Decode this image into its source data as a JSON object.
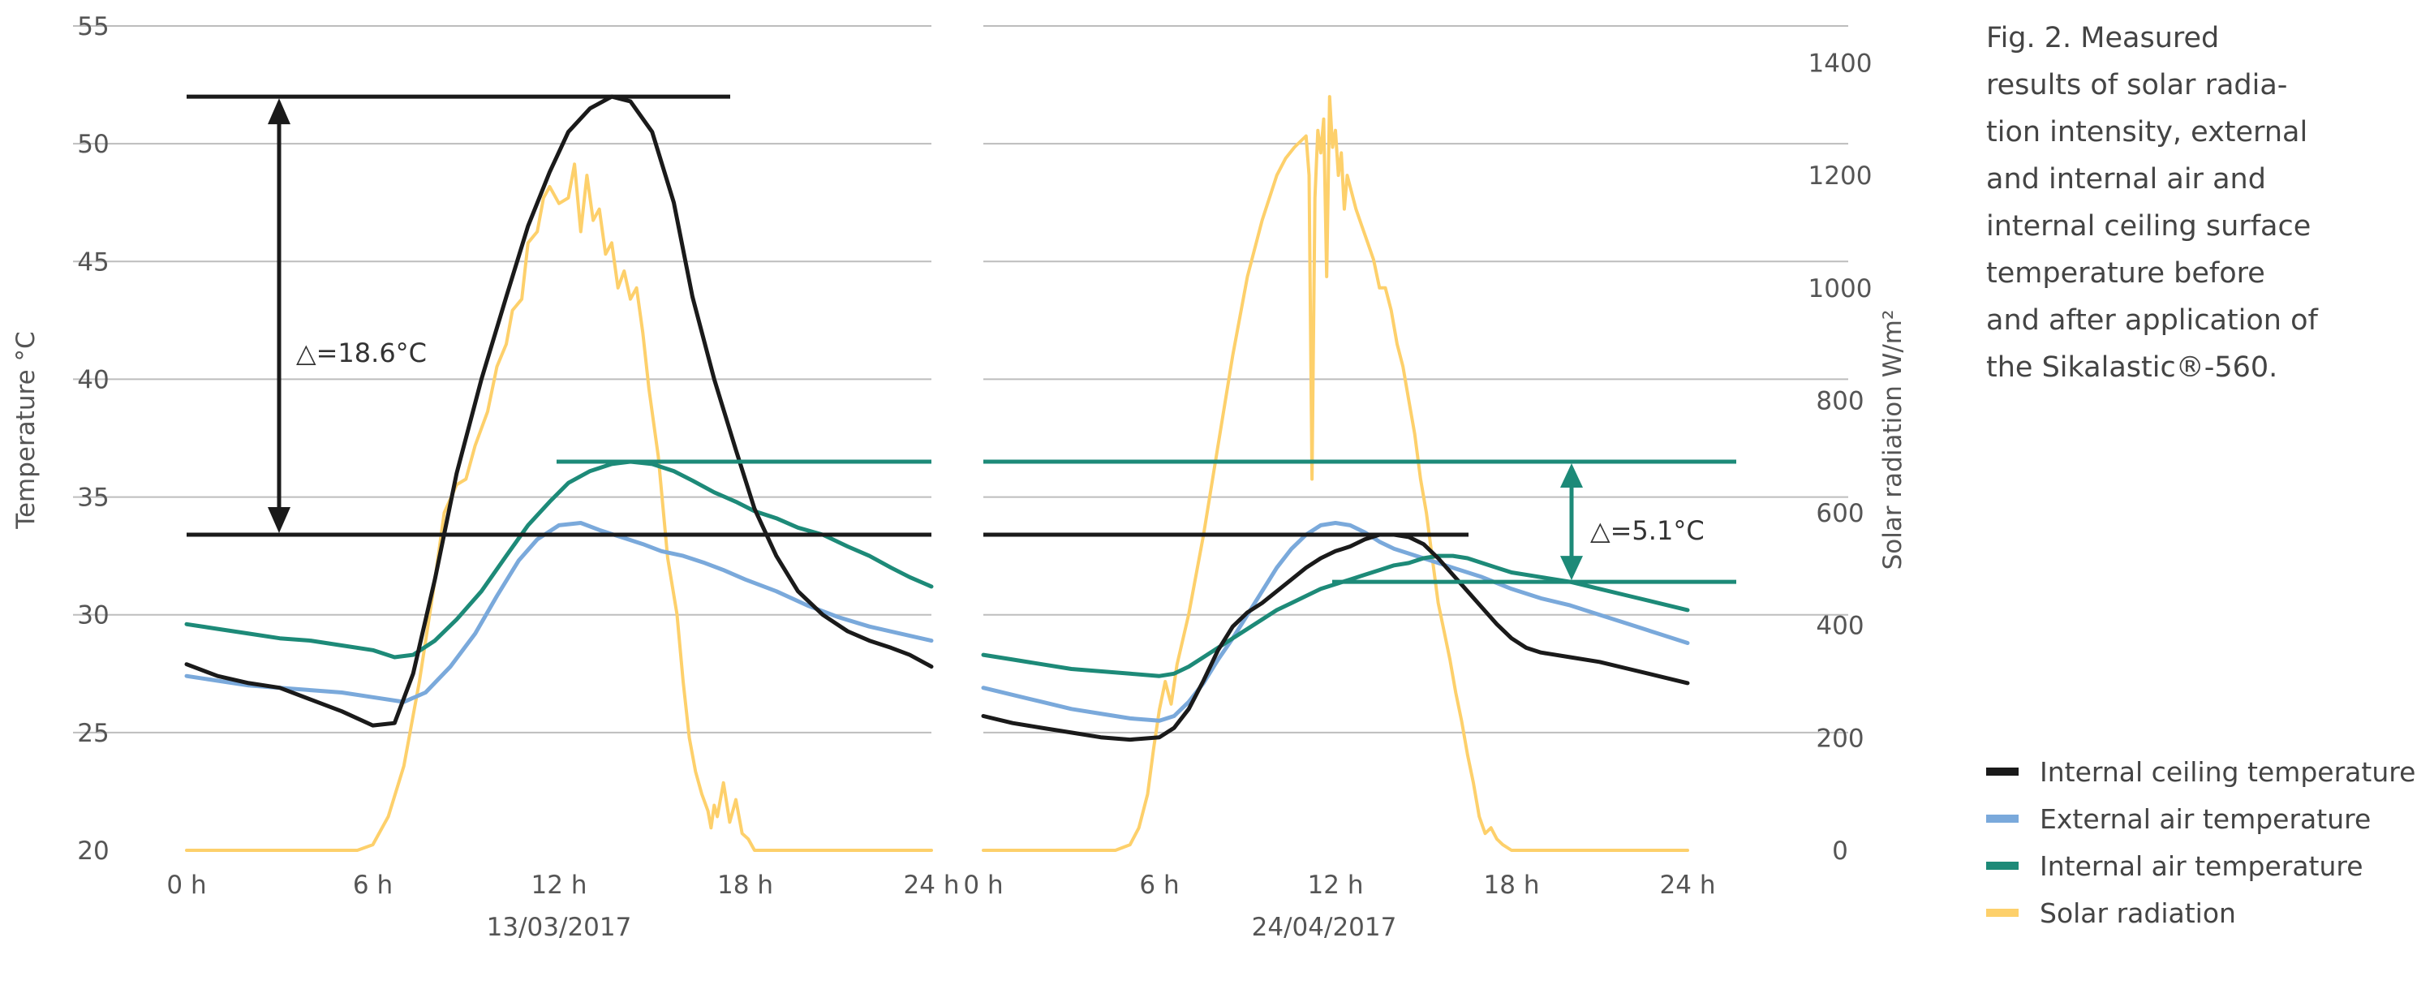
{
  "caption": [
    "Fig. 2. Measured",
    "results of solar radia-",
    "tion intensity, external",
    "and internal air and",
    "internal ceiling surface",
    "temperature before",
    "and after application of",
    "the Sikalastic®-560."
  ],
  "legend": [
    {
      "name": "Internal ceiling temperature",
      "color": "#1a1a1a"
    },
    {
      "name": "External air temperature",
      "color": "#7aa9db"
    },
    {
      "name": "Internal air temperature",
      "color": "#1d8a78"
    },
    {
      "name": "Solar radiation",
      "color": "#fdd06b"
    }
  ],
  "chart_data": {
    "type": "line",
    "ylabel": "Temperature °C",
    "y2label": "Solar radiation W/m²",
    "ylim": [
      20,
      55
    ],
    "y2lim": [
      0,
      1400
    ],
    "yticks": [
      "55",
      "50",
      "45",
      "40",
      "35",
      "30",
      "25",
      "20"
    ],
    "y2ticks": [
      "1400",
      "1200",
      "1000",
      "800",
      "600",
      "400",
      "200",
      "0"
    ],
    "xticks": [
      "0 h",
      "6 h",
      "12 h",
      "18 h",
      "24 h"
    ],
    "grid": true,
    "legend_position": "bottom-right",
    "panels": [
      {
        "date": "13/03/2017",
        "annotation": "△=18.6°C",
        "series": [
          {
            "name": "Internal ceiling temperature",
            "x": [
              0,
              1,
              2,
              3,
              4,
              5,
              6,
              6.7,
              7.3,
              8,
              8.7,
              9.5,
              10.3,
              11,
              11.7,
              12.3,
              13,
              13.7,
              14.3,
              15,
              15.7,
              16.3,
              17,
              17.7,
              18.3,
              19,
              19.7,
              20.5,
              21.3,
              22,
              22.7,
              23.3,
              24
            ],
            "y": [
              27.9,
              27.4,
              27.1,
              26.9,
              26.4,
              25.9,
              25.3,
              25.4,
              27.5,
              31.5,
              36,
              40,
              43.5,
              46.5,
              48.8,
              50.5,
              51.5,
              52,
              51.8,
              50.5,
              47.5,
              43.5,
              40,
              37,
              34.5,
              32.5,
              31,
              30,
              29.3,
              28.9,
              28.6,
              28.3,
              27.8
            ]
          },
          {
            "name": "External air temperature",
            "x": [
              0,
              1,
              2,
              3,
              4,
              5,
              6,
              7,
              7.7,
              8.5,
              9.3,
              10,
              10.7,
              11.3,
              12,
              12.7,
              13.3,
              14,
              14.7,
              15.3,
              16,
              16.7,
              17.3,
              18,
              19,
              20,
              21,
              22,
              23,
              24
            ],
            "y": [
              27.4,
              27.2,
              27.0,
              26.9,
              26.8,
              26.7,
              26.5,
              26.3,
              26.7,
              27.8,
              29.2,
              30.8,
              32.3,
              33.2,
              33.8,
              33.9,
              33.6,
              33.3,
              33.0,
              32.7,
              32.5,
              32.2,
              31.9,
              31.5,
              31.0,
              30.4,
              29.9,
              29.5,
              29.2,
              28.9
            ]
          },
          {
            "name": "Internal air temperature",
            "x": [
              0,
              1,
              2,
              3,
              4,
              5,
              6,
              6.7,
              7.3,
              8,
              8.7,
              9.5,
              10.3,
              11,
              11.7,
              12.3,
              13,
              13.7,
              14.3,
              15,
              15.7,
              16.3,
              17,
              17.7,
              18.3,
              19,
              19.7,
              20.5,
              21.3,
              22,
              22.7,
              23.3,
              24
            ],
            "y": [
              29.6,
              29.4,
              29.2,
              29.0,
              28.9,
              28.7,
              28.5,
              28.2,
              28.3,
              28.9,
              29.8,
              31.0,
              32.5,
              33.8,
              34.8,
              35.6,
              36.1,
              36.4,
              36.5,
              36.4,
              36.1,
              35.7,
              35.2,
              34.8,
              34.4,
              34.1,
              33.7,
              33.4,
              32.9,
              32.5,
              32.0,
              31.6,
              31.2
            ]
          },
          {
            "name": "Solar radiation",
            "x": [
              0,
              5.5,
              6,
              6.5,
              7,
              7.5,
              8,
              8.3,
              8.7,
              9,
              9.3,
              9.7,
              10,
              10.3,
              10.5,
              10.8,
              11,
              11.3,
              11.5,
              11.7,
              12,
              12.3,
              12.5,
              12.7,
              12.9,
              13.1,
              13.3,
              13.5,
              13.7,
              13.9,
              14.1,
              14.3,
              14.5,
              14.7,
              14.9,
              15.2,
              15.5,
              15.8,
              16,
              16.2,
              16.4,
              16.6,
              16.8,
              16.9,
              17.0,
              17.1,
              17.3,
              17.5,
              17.7,
              17.9,
              18.1,
              18.3,
              19,
              24
            ],
            "y": [
              0,
              0,
              10,
              60,
              150,
              300,
              480,
              600,
              650,
              660,
              720,
              780,
              860,
              900,
              960,
              980,
              1080,
              1100,
              1160,
              1180,
              1150,
              1160,
              1220,
              1100,
              1200,
              1120,
              1140,
              1060,
              1080,
              1000,
              1030,
              980,
              1000,
              920,
              820,
              700,
              520,
              420,
              300,
              200,
              140,
              100,
              70,
              40,
              80,
              60,
              120,
              50,
              90,
              30,
              20,
              0,
              0,
              0
            ]
          }
        ],
        "annotation_lines": {
          "max": 52,
          "min": 33.4,
          "internal_air_level": 36.5
        }
      },
      {
        "date": "24/04/2017",
        "annotation": "△=5.1°C",
        "series": [
          {
            "name": "Internal ceiling temperature",
            "x": [
              0,
              1,
              2,
              3,
              4,
              5,
              6,
              6.5,
              7,
              7.5,
              8,
              8.5,
              9,
              9.5,
              10,
              10.5,
              11,
              11.5,
              12,
              12.5,
              13,
              13.5,
              14,
              14.5,
              15,
              15.5,
              16,
              16.5,
              17,
              17.5,
              18,
              18.5,
              19,
              20,
              21,
              22,
              23,
              24
            ],
            "y": [
              25.7,
              25.4,
              25.2,
              25.0,
              24.8,
              24.7,
              24.8,
              25.2,
              26.0,
              27.2,
              28.5,
              29.5,
              30.1,
              30.5,
              31.0,
              31.5,
              32.0,
              32.4,
              32.7,
              32.9,
              33.2,
              33.4,
              33.4,
              33.3,
              33.0,
              32.4,
              31.7,
              31.0,
              30.3,
              29.6,
              29.0,
              28.6,
              28.4,
              28.2,
              28.0,
              27.7,
              27.4,
              27.1
            ]
          },
          {
            "name": "External air temperature",
            "x": [
              0,
              1,
              2,
              3,
              4,
              5,
              6,
              6.5,
              7,
              7.5,
              8,
              8.5,
              9,
              9.5,
              10,
              10.5,
              11,
              11.5,
              12,
              12.5,
              13,
              13.5,
              14,
              15,
              16,
              17,
              18,
              19,
              20,
              21,
              22,
              23,
              24
            ],
            "y": [
              26.9,
              26.6,
              26.3,
              26.0,
              25.8,
              25.6,
              25.5,
              25.7,
              26.3,
              27.1,
              28.1,
              29.0,
              30.0,
              31.0,
              32.0,
              32.8,
              33.4,
              33.8,
              33.9,
              33.8,
              33.5,
              33.1,
              32.8,
              32.4,
              32.0,
              31.6,
              31.1,
              30.7,
              30.4,
              30.0,
              29.6,
              29.2,
              28.8
            ]
          },
          {
            "name": "Internal air temperature",
            "x": [
              0,
              1,
              2,
              3,
              4,
              5,
              6,
              6.5,
              7,
              7.5,
              8,
              8.5,
              9,
              9.5,
              10,
              10.5,
              11,
              11.5,
              12,
              12.5,
              13,
              13.5,
              14,
              14.5,
              15,
              15.5,
              16,
              16.5,
              17,
              17.5,
              18,
              19,
              20,
              21,
              22,
              23,
              24
            ],
            "y": [
              28.3,
              28.1,
              27.9,
              27.7,
              27.6,
              27.5,
              27.4,
              27.5,
              27.8,
              28.2,
              28.6,
              29.0,
              29.4,
              29.8,
              30.2,
              30.5,
              30.8,
              31.1,
              31.3,
              31.5,
              31.7,
              31.9,
              32.1,
              32.2,
              32.4,
              32.5,
              32.5,
              32.4,
              32.2,
              32.0,
              31.8,
              31.6,
              31.4,
              31.1,
              30.8,
              30.5,
              30.2
            ]
          },
          {
            "name": "Solar radiation",
            "x": [
              0,
              4.5,
              5,
              5.3,
              5.6,
              5.8,
              6,
              6.2,
              6.4,
              6.6,
              7,
              7.5,
              8,
              8.5,
              9,
              9.5,
              10,
              10.3,
              10.6,
              10.8,
              11,
              11.1,
              11.2,
              11.3,
              11.4,
              11.5,
              11.6,
              11.7,
              11.8,
              11.9,
              12.0,
              12.1,
              12.2,
              12.3,
              12.4,
              12.5,
              12.7,
              12.9,
              13.1,
              13.3,
              13.5,
              13.7,
              13.9,
              14.1,
              14.3,
              14.5,
              14.7,
              14.9,
              15.1,
              15.3,
              15.5,
              15.7,
              15.9,
              16.1,
              16.3,
              16.5,
              16.7,
              16.9,
              17.1,
              17.3,
              17.5,
              17.7,
              18,
              24
            ],
            "y": [
              0,
              0,
              10,
              40,
              100,
              180,
              250,
              300,
              260,
              330,
              420,
              560,
              720,
              880,
              1020,
              1120,
              1200,
              1230,
              1250,
              1260,
              1270,
              1200,
              660,
              1160,
              1280,
              1240,
              1300,
              1020,
              1340,
              1250,
              1280,
              1200,
              1240,
              1140,
              1200,
              1180,
              1140,
              1110,
              1080,
              1050,
              1000,
              1000,
              960,
              900,
              860,
              800,
              740,
              660,
              600,
              520,
              440,
              390,
              340,
              280,
              230,
              170,
              120,
              60,
              30,
              40,
              20,
              10,
              0,
              0
            ]
          }
        ],
        "annotation_lines": {
          "min_ceiling": 33.4,
          "internal_air_max": 36.5,
          "internal_air_level": 31.4
        }
      }
    ]
  }
}
